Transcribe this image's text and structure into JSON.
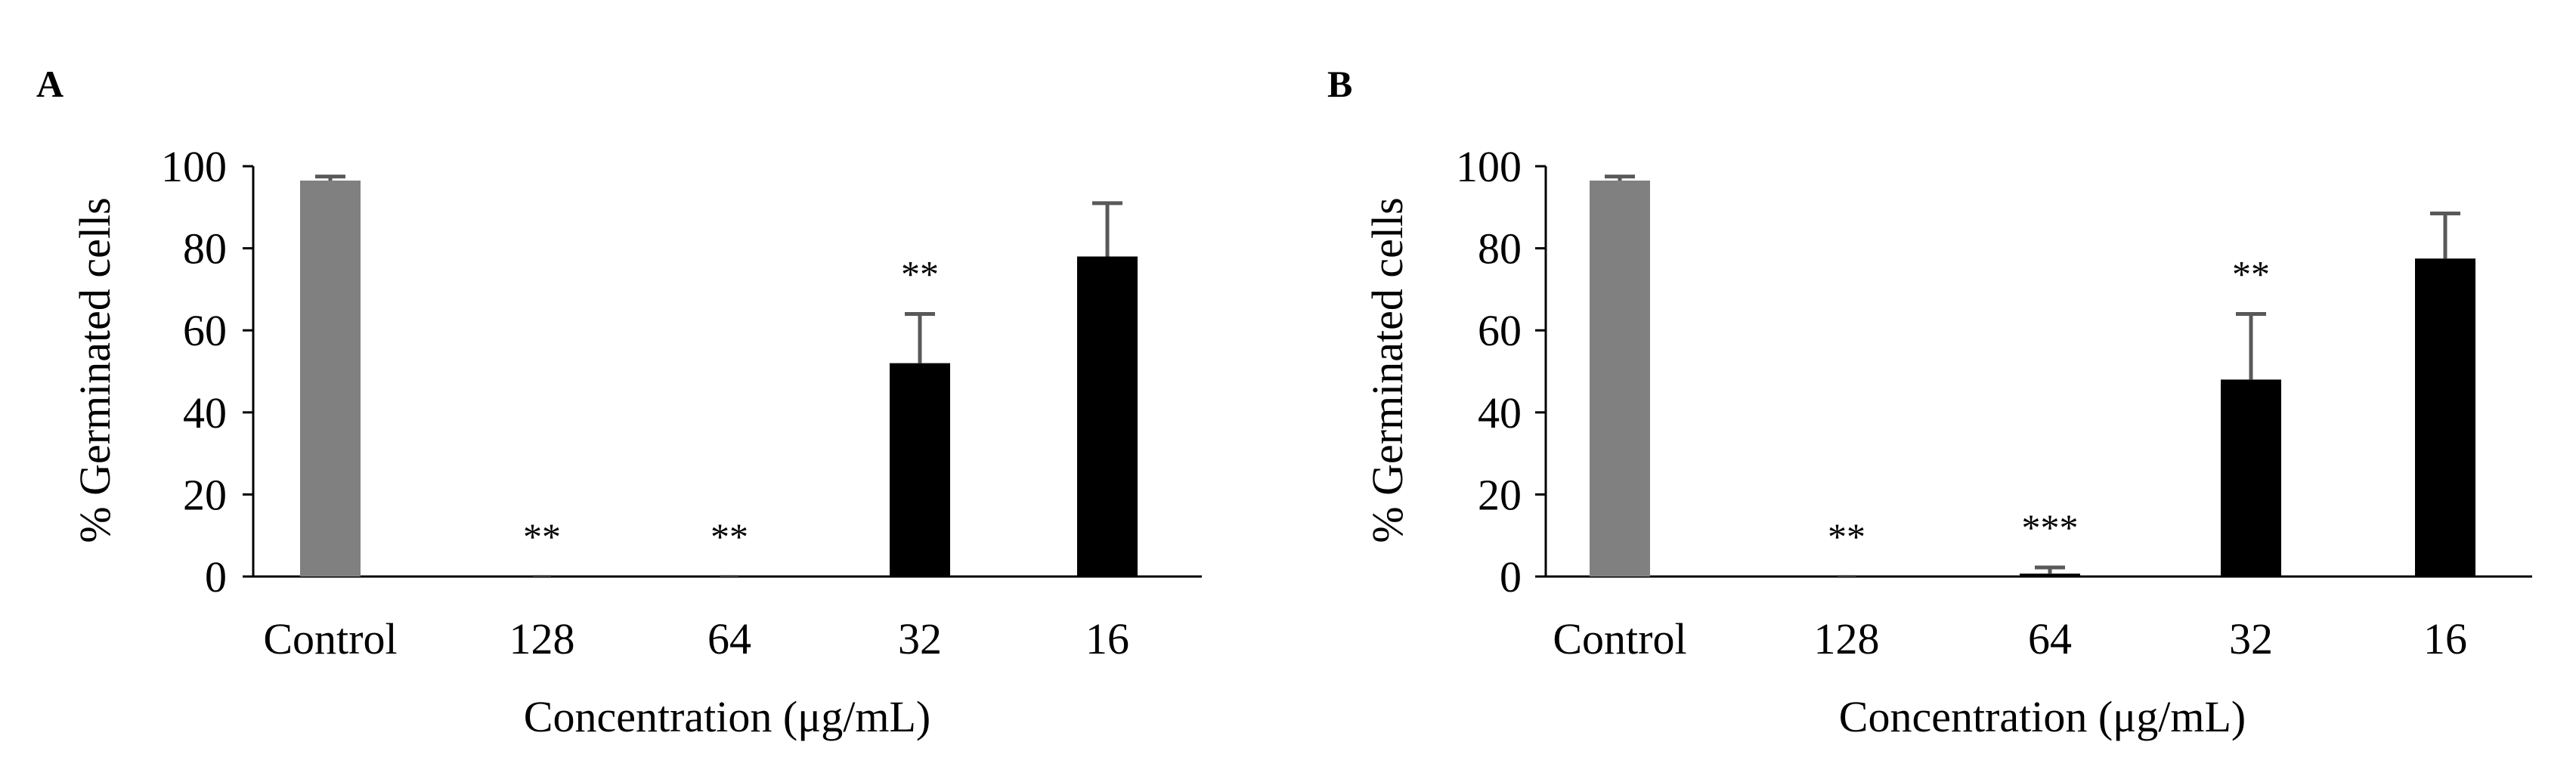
{
  "colors": {
    "control": "#808080",
    "treatment": "#000000",
    "error_bar": "#595959",
    "axis": "#000000"
  },
  "chart_data": [
    {
      "type": "bar",
      "panel": "A",
      "title": "",
      "xlabel": "Concentration (μg/mL)",
      "ylabel": "% Germinated cells",
      "ylim": [
        0,
        100
      ],
      "yticks": [
        0,
        20,
        40,
        60,
        80,
        100
      ],
      "ytick_labels": [
        "0",
        "20",
        "40",
        "60",
        "80",
        "100"
      ],
      "categories": [
        "Control",
        "128",
        "64",
        "32",
        "16"
      ],
      "values": [
        96.5,
        0,
        0,
        52,
        78
      ],
      "errors": [
        1,
        0,
        0,
        12,
        13
      ],
      "bar_colors": [
        "#808080",
        "#000000",
        "#000000",
        "#000000",
        "#000000"
      ],
      "significance": [
        "",
        "**",
        "**",
        "**",
        ""
      ]
    },
    {
      "type": "bar",
      "panel": "B",
      "title": "",
      "xlabel": "Concentration (μg/mL)",
      "ylabel": "% Germinated cells",
      "ylim": [
        0,
        100
      ],
      "yticks": [
        0,
        20,
        40,
        60,
        80,
        100
      ],
      "ytick_labels": [
        "0",
        "20",
        "40",
        "60",
        "80",
        "100"
      ],
      "categories": [
        "Control",
        "128",
        "64",
        "32",
        "16"
      ],
      "values": [
        96.5,
        0,
        0.7,
        48,
        77.5
      ],
      "errors": [
        1,
        0,
        1.5,
        16,
        11
      ],
      "bar_colors": [
        "#808080",
        "#000000",
        "#000000",
        "#000000",
        "#000000"
      ],
      "significance": [
        "",
        "**",
        "***",
        "**",
        ""
      ]
    }
  ]
}
